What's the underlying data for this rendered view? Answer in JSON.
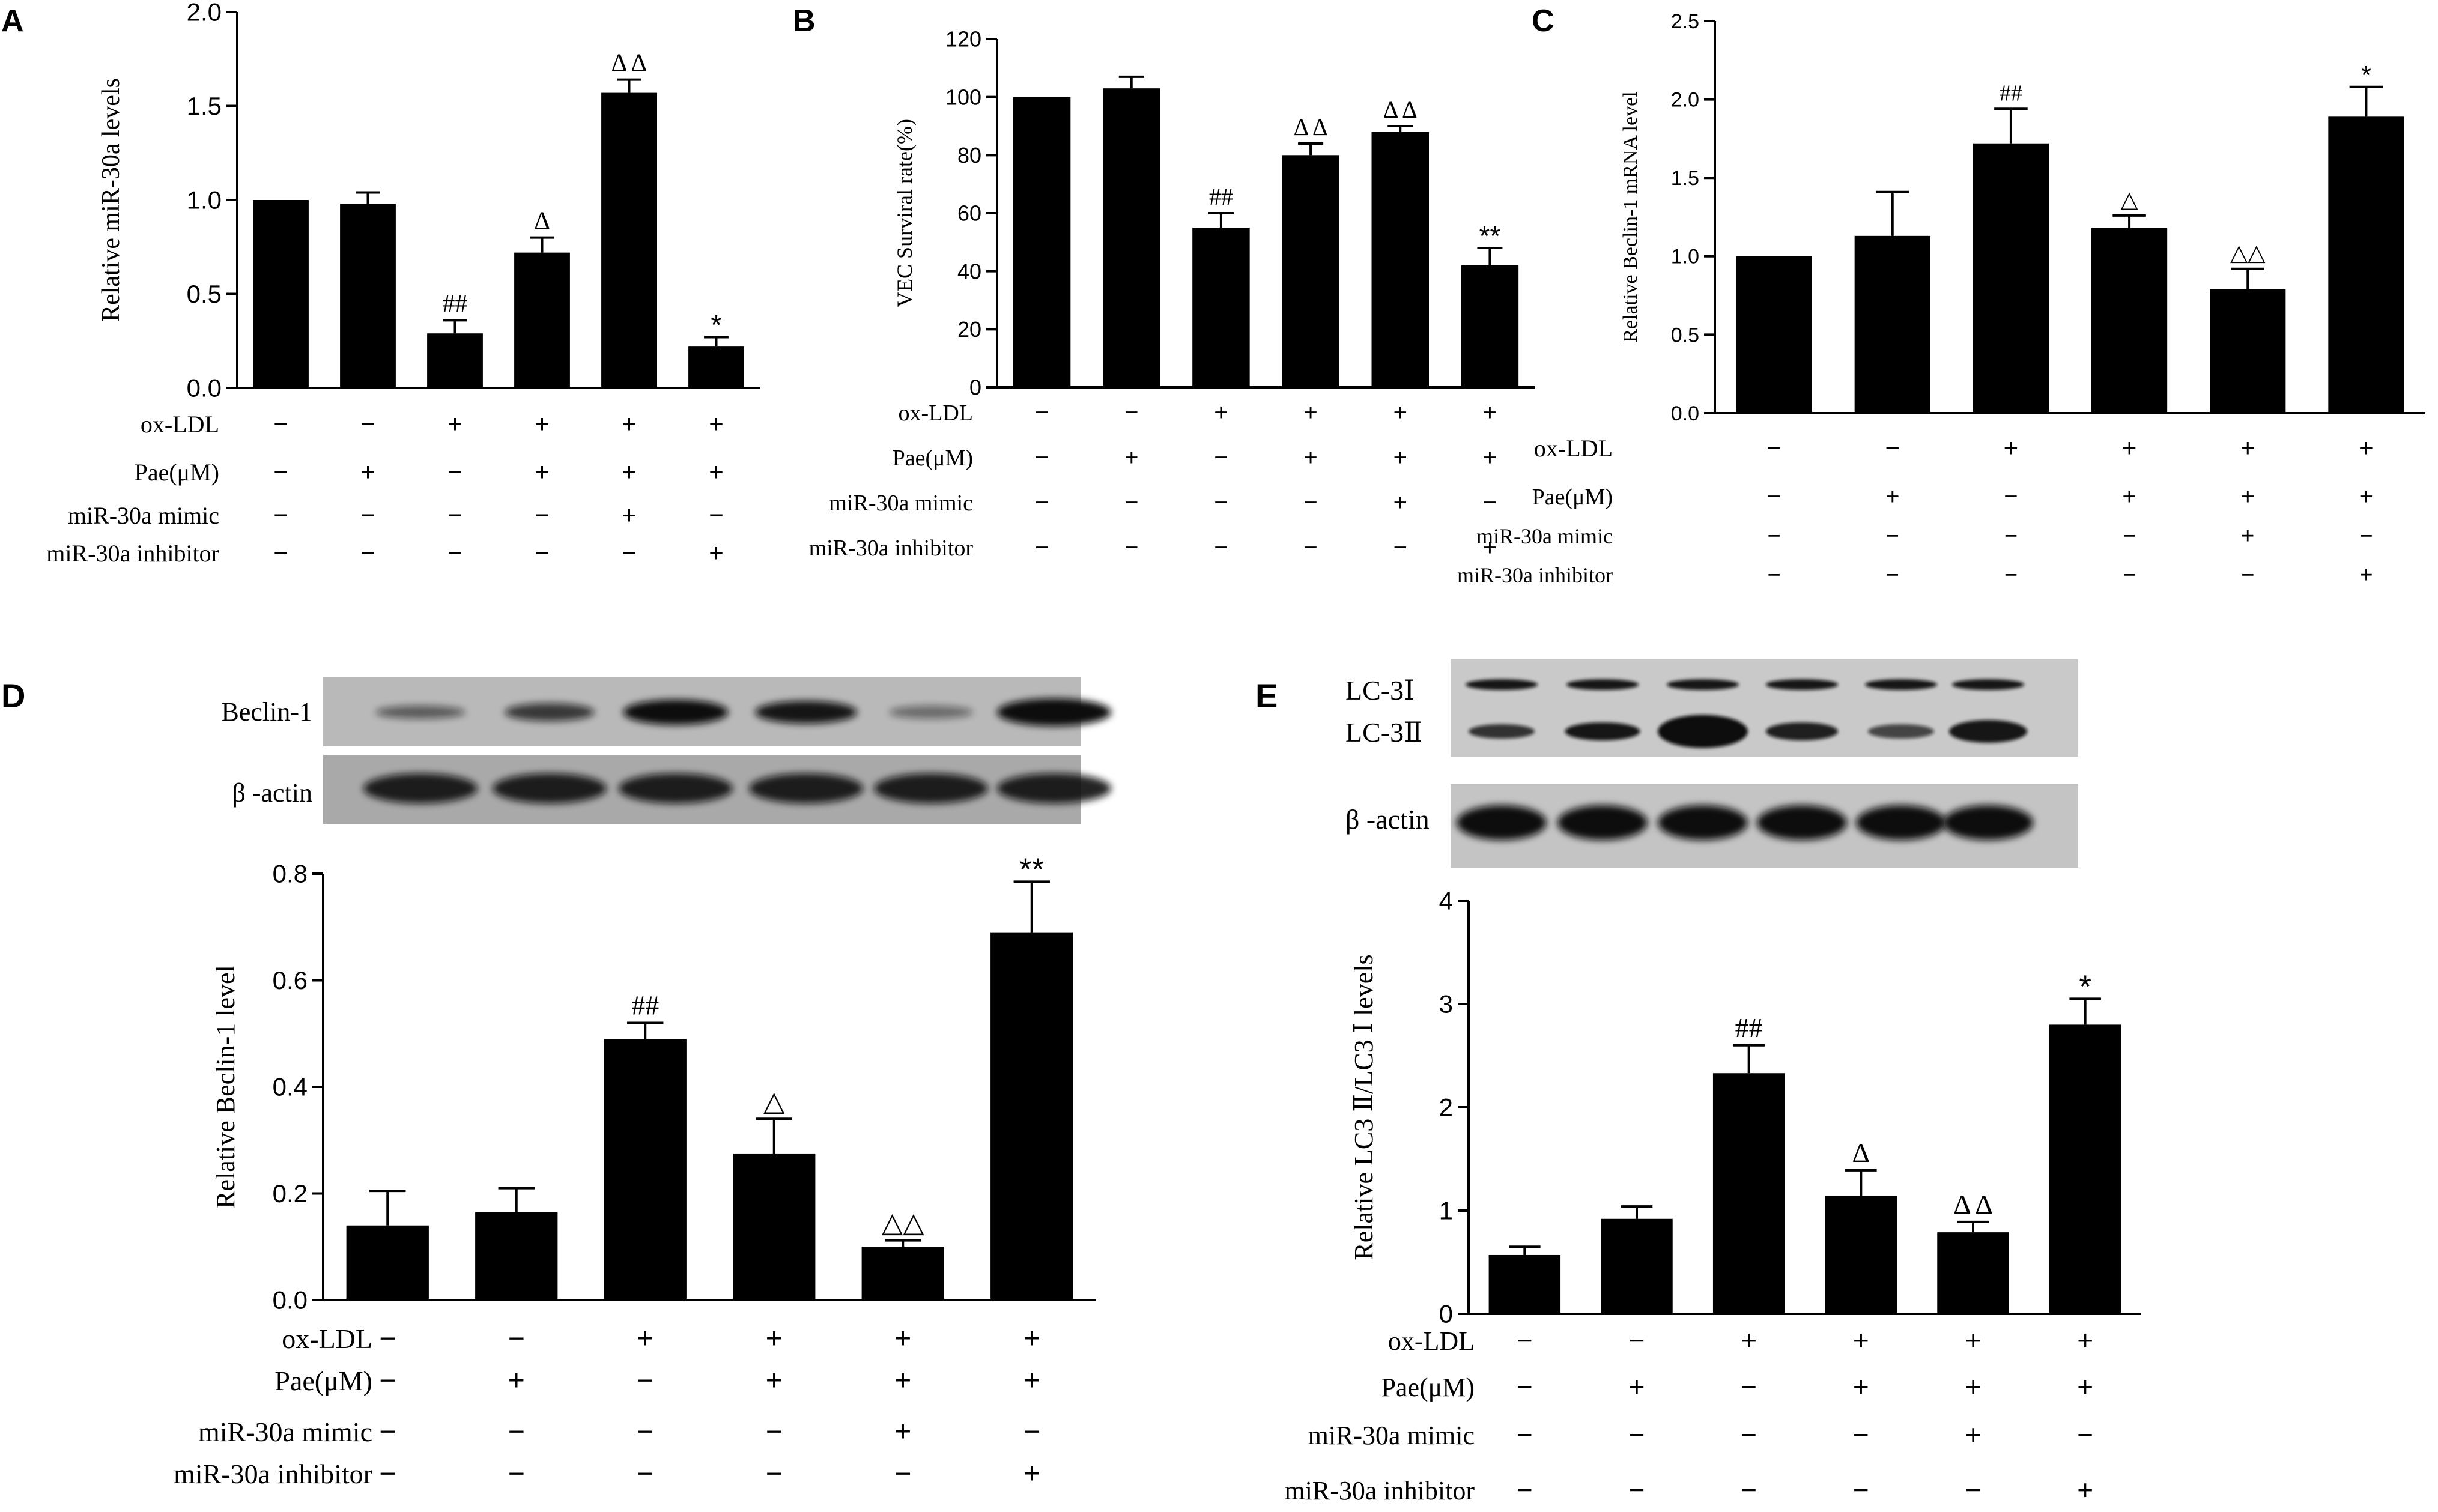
{
  "panel_labels": [
    "A",
    "B",
    "C",
    "D",
    "E"
  ],
  "blots": {
    "D": {
      "rows": [
        "Beclin-1",
        "β -actin"
      ]
    },
    "E": {
      "rows": [
        "LC-3Ⅰ",
        "LC-3Ⅱ",
        "β -actin"
      ]
    }
  },
  "chart_data": [
    {
      "panel": "A",
      "type": "bar",
      "title": "",
      "ylabel": "Relative miR-30a  levels",
      "ylim": [
        0,
        2.0
      ],
      "yticks": [
        "0.0",
        "0.5",
        "1.0",
        "1.5",
        "2.0"
      ],
      "categories": [
        "1",
        "2",
        "3",
        "4",
        "5",
        "6"
      ],
      "values": [
        1.0,
        0.98,
        0.29,
        0.72,
        1.57,
        0.22
      ],
      "errors": [
        0.0,
        0.06,
        0.07,
        0.08,
        0.07,
        0.05
      ],
      "significance": [
        "",
        "",
        "##",
        "Δ",
        "Δ Δ",
        "*"
      ],
      "conditions": [
        {
          "label": "ox-LDL",
          "signs": [
            "−",
            "−",
            "+",
            "+",
            "+",
            "+"
          ]
        },
        {
          "label": "Pae(μM)",
          "signs": [
            "−",
            "+",
            "−",
            "+",
            "+",
            "+"
          ]
        },
        {
          "label": "miR-30a mimic",
          "signs": [
            "−",
            "−",
            "−",
            "−",
            "+",
            "−"
          ]
        },
        {
          "label": "miR-30a inhibitor",
          "signs": [
            "−",
            "−",
            "−",
            "−",
            "−",
            "+"
          ]
        }
      ]
    },
    {
      "panel": "B",
      "type": "bar",
      "title": "",
      "ylabel": "VEC Surviral rate(%)",
      "ylim": [
        0,
        120
      ],
      "yticks": [
        "0",
        "20",
        "40",
        "60",
        "80",
        "100",
        "120"
      ],
      "categories": [
        "1",
        "2",
        "3",
        "4",
        "5",
        "6"
      ],
      "values": [
        100,
        103,
        55,
        80,
        88,
        42
      ],
      "errors": [
        0,
        4,
        5,
        4,
        2,
        6
      ],
      "significance": [
        "",
        "",
        "##",
        "Δ Δ",
        "Δ Δ",
        "**"
      ],
      "conditions": [
        {
          "label": "ox-LDL",
          "signs": [
            "−",
            "−",
            "+",
            "+",
            "+",
            "+"
          ]
        },
        {
          "label": "Pae(μM)",
          "signs": [
            "−",
            "+",
            "−",
            "+",
            "+",
            "+"
          ]
        },
        {
          "label": "miR-30a mimic",
          "signs": [
            "−",
            "−",
            "−",
            "−",
            "+",
            "−"
          ]
        },
        {
          "label": "miR-30a inhibitor",
          "signs": [
            "−",
            "−",
            "−",
            "−",
            "−",
            "+"
          ]
        }
      ]
    },
    {
      "panel": "C",
      "type": "bar",
      "title": "",
      "ylabel": "Relative Beclin-1 mRNA  level",
      "ylim": [
        0,
        2.5
      ],
      "yticks": [
        "0.0",
        "0.5",
        "1.0",
        "1.5",
        "2.0",
        "2.5"
      ],
      "categories": [
        "1",
        "2",
        "3",
        "4",
        "5",
        "6"
      ],
      "values": [
        1.0,
        1.13,
        1.72,
        1.18,
        0.79,
        1.89
      ],
      "errors": [
        0.0,
        0.28,
        0.22,
        0.08,
        0.13,
        0.19
      ],
      "significance": [
        "",
        "",
        "##",
        "△",
        "△△",
        "*"
      ],
      "conditions": [
        {
          "label": "ox-LDL",
          "signs": [
            "−",
            "−",
            "+",
            "+",
            "+",
            "+"
          ]
        },
        {
          "label": "Pae(μM)",
          "signs": [
            "−",
            "+",
            "−",
            "+",
            "+",
            "+"
          ]
        },
        {
          "label": "miR-30a mimic",
          "signs": [
            "−",
            "−",
            "−",
            "−",
            "+",
            "−"
          ]
        },
        {
          "label": "miR-30a inhibitor",
          "signs": [
            "−",
            "−",
            "−",
            "−",
            "−",
            "+"
          ]
        }
      ]
    },
    {
      "panel": "D",
      "type": "bar",
      "title": "",
      "ylabel": "Relative Beclin-1  level",
      "ylim": [
        0,
        0.8
      ],
      "yticks": [
        "0.0",
        "0.2",
        "0.4",
        "0.6",
        "0.8"
      ],
      "categories": [
        "1",
        "2",
        "3",
        "4",
        "5",
        "6"
      ],
      "values": [
        0.14,
        0.165,
        0.49,
        0.275,
        0.1,
        0.69
      ],
      "errors": [
        0.065,
        0.045,
        0.03,
        0.065,
        0.012,
        0.095
      ],
      "significance": [
        "",
        "",
        "##",
        "△",
        "△△",
        "**"
      ],
      "conditions": [
        {
          "label": "ox-LDL",
          "signs": [
            "−",
            "−",
            "+",
            "+",
            "+",
            "+"
          ]
        },
        {
          "label": "Pae(μM)",
          "signs": [
            "−",
            "+",
            "−",
            "+",
            "+",
            "+"
          ]
        },
        {
          "label": "miR-30a mimic",
          "signs": [
            "−",
            "−",
            "−",
            "−",
            "+",
            "−"
          ]
        },
        {
          "label": "miR-30a inhibitor",
          "signs": [
            "−",
            "−",
            "−",
            "−",
            "−",
            "+"
          ]
        }
      ]
    },
    {
      "panel": "E",
      "type": "bar",
      "title": "",
      "ylabel": "Relative LC3 Ⅱ/LC3 Ⅰ levels",
      "ylim": [
        0,
        4
      ],
      "yticks": [
        "0",
        "1",
        "2",
        "3",
        "4"
      ],
      "categories": [
        "1",
        "2",
        "3",
        "4",
        "5",
        "6"
      ],
      "values": [
        0.57,
        0.92,
        2.33,
        1.14,
        0.79,
        2.8
      ],
      "errors": [
        0.08,
        0.12,
        0.27,
        0.25,
        0.1,
        0.25
      ],
      "significance": [
        "",
        "",
        "##",
        "Δ",
        "Δ Δ",
        "*"
      ],
      "conditions": [
        {
          "label": "ox-LDL",
          "signs": [
            "−",
            "−",
            "+",
            "+",
            "+",
            "+"
          ]
        },
        {
          "label": "Pae(μM)",
          "signs": [
            "−",
            "+",
            "−",
            "+",
            "+",
            "+"
          ]
        },
        {
          "label": "miR-30a mimic",
          "signs": [
            "−",
            "−",
            "−",
            "−",
            "+",
            "−"
          ]
        },
        {
          "label": "miR-30a inhibitor",
          "signs": [
            "−",
            "−",
            "−",
            "−",
            "−",
            "+"
          ]
        }
      ]
    }
  ]
}
